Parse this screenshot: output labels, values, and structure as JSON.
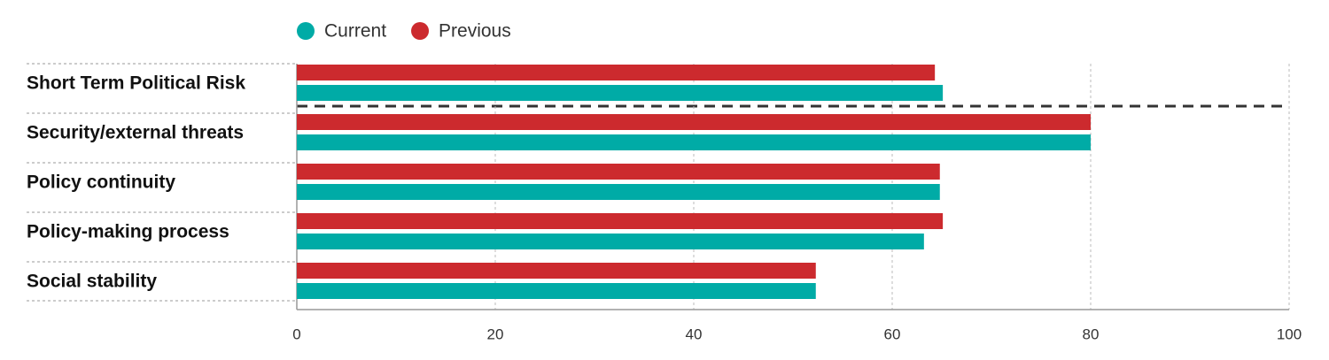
{
  "chart_data": {
    "type": "bar",
    "orientation": "horizontal",
    "categories": [
      "Short Term Political Risk",
      "Security/external threats",
      "Policy continuity",
      "Policy-making process",
      "Social stability"
    ],
    "series": [
      {
        "name": "Current",
        "color": "#00aba6",
        "values": [
          65.1,
          80,
          64.8,
          63.2,
          52.3
        ]
      },
      {
        "name": "Previous",
        "color": "#cc2a2e",
        "values": [
          64.3,
          80,
          64.8,
          65.1,
          52.3
        ]
      }
    ],
    "xlim": [
      0,
      100
    ],
    "xticks": [
      0,
      20,
      40,
      60,
      80,
      100
    ],
    "grid": true
  }
}
